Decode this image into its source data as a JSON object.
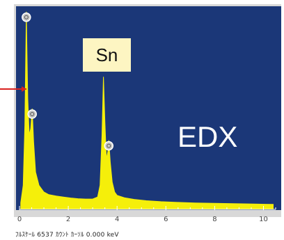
{
  "chart_data": {
    "type": "line",
    "title": "EDX",
    "xlabel": "",
    "ylabel": "",
    "xlim": [
      0,
      10.5
    ],
    "ylim": [
      0,
      6000
    ],
    "grid": false,
    "x_ticks": [
      0,
      2,
      4,
      6,
      8,
      10
    ],
    "x_tick_labels": [
      "0",
      "2",
      "4",
      "6",
      "8",
      "10"
    ],
    "peaks": [
      {
        "label": "",
        "x": 0.28,
        "y": 5900
      },
      {
        "label": "",
        "x": 0.52,
        "y": 3000
      },
      {
        "label": "Sn",
        "x": 3.44,
        "y": 3950
      },
      {
        "label": "",
        "x": 3.66,
        "y": 2050
      }
    ],
    "series": [
      {
        "x": [
          0.05,
          0.15,
          0.22,
          0.28,
          0.34,
          0.4,
          0.46,
          0.52,
          0.58,
          0.66,
          0.8,
          1.0,
          1.2,
          1.5,
          1.8,
          2.1,
          2.4,
          2.7,
          3.0,
          3.2,
          3.3,
          3.38,
          3.44,
          3.5,
          3.56,
          3.62,
          3.66,
          3.72,
          3.8,
          3.9,
          4.0,
          4.3,
          4.7,
          5.2,
          5.8,
          6.5,
          7.2,
          8.0,
          8.8,
          9.6,
          10.4
        ],
        "y": [
          180,
          700,
          2500,
          5900,
          3300,
          2200,
          2400,
          3000,
          2000,
          1100,
          700,
          500,
          420,
          380,
          350,
          320,
          300,
          290,
          290,
          350,
          700,
          2200,
          3950,
          2600,
          1500,
          1700,
          2050,
          1400,
          800,
          500,
          400,
          330,
          280,
          240,
          210,
          190,
          170,
          160,
          150,
          140,
          130
        ]
      }
    ],
    "colors": {
      "background": "#1b3778",
      "spectrum": "#f5ef0a",
      "marker": "#d9211f",
      "frame": "#d8d8d8"
    }
  },
  "labels": {
    "sn": "Sn",
    "edx": "EDX"
  },
  "footer": {
    "text": "ﾌﾙｽｹｰﾙ 6537 ｶｳﾝﾄ ｶｰｿﾙ 0.000 keV"
  }
}
